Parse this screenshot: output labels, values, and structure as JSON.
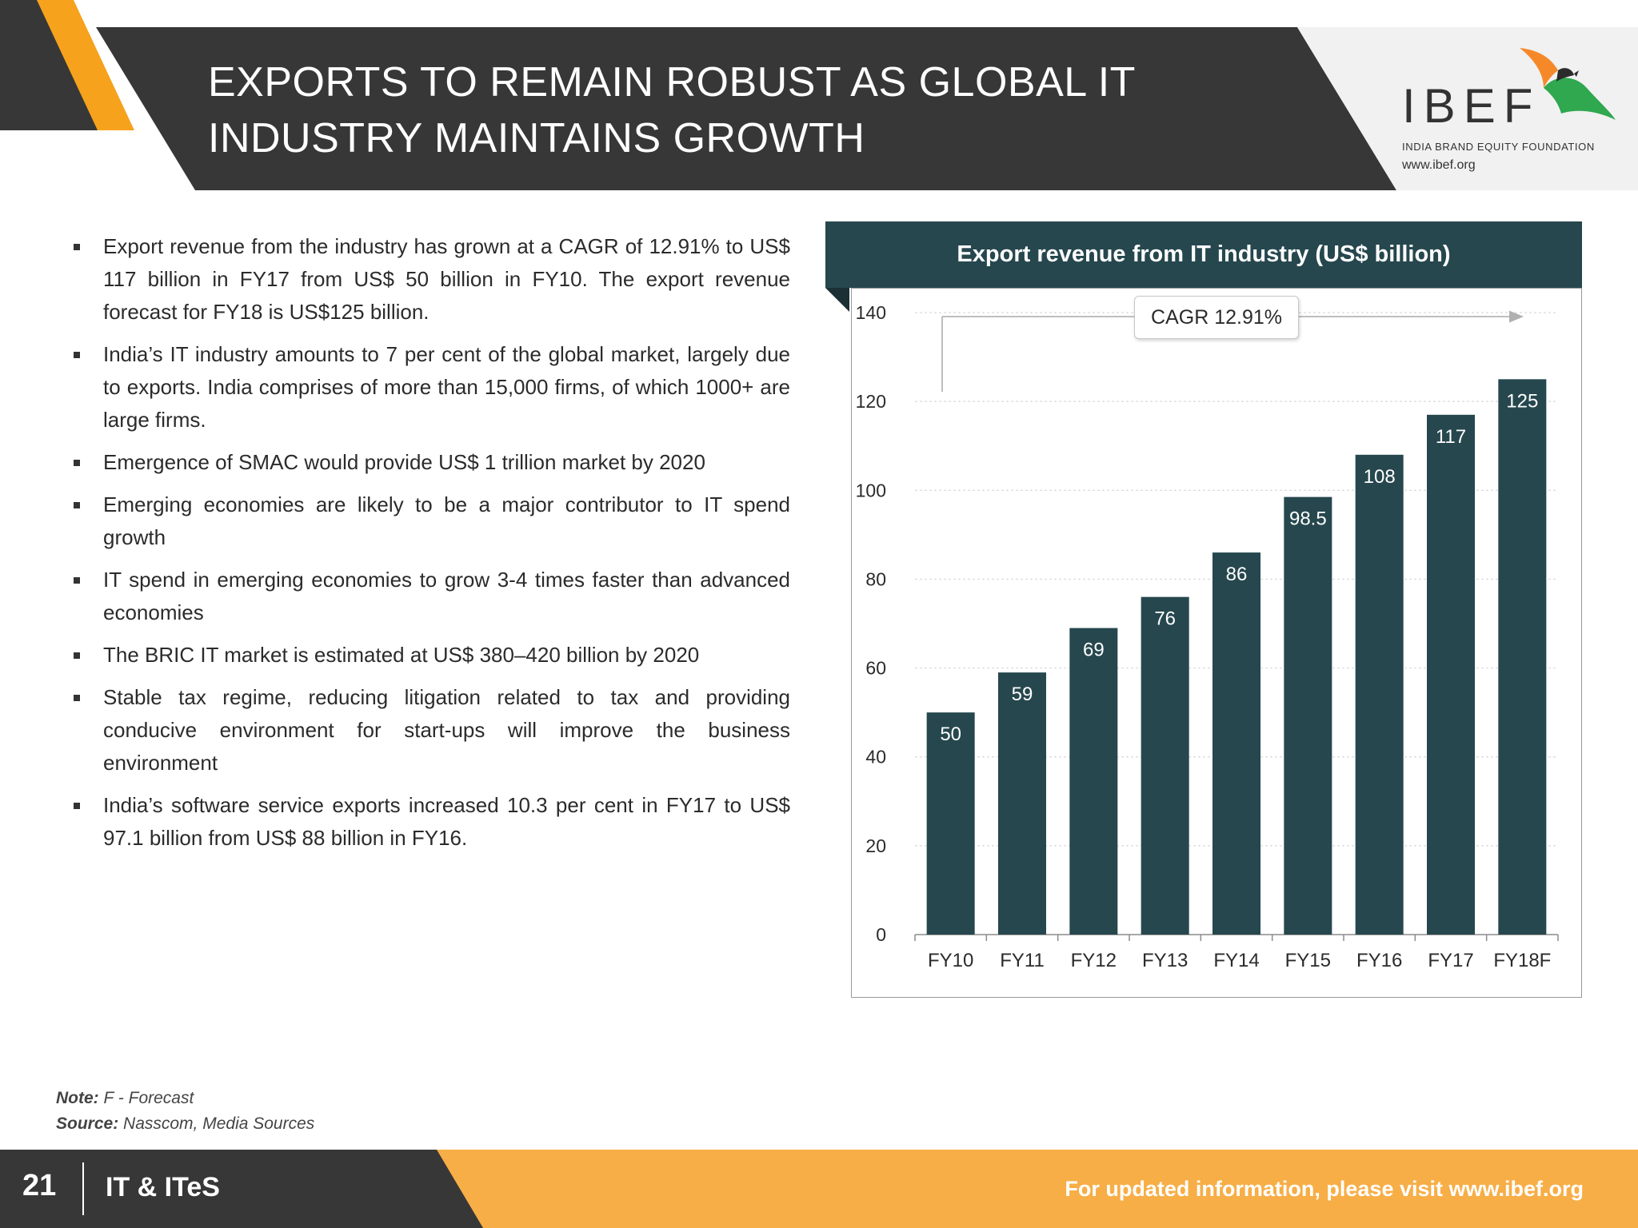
{
  "header": {
    "title_line1": "EXPORTS TO REMAIN ROBUST AS GLOBAL IT",
    "title_line2": "INDUSTRY MAINTAINS GROWTH",
    "logo": {
      "name": "IBEF",
      "tagline": "INDIA BRAND EQUITY FOUNDATION",
      "url": "www.ibef.org"
    }
  },
  "bullets": [
    "Export revenue from the industry has grown at a CAGR of 12.91% to US$ 117 billion in FY17 from US$ 50 billion in FY10. The export revenue forecast for FY18 is US$125 billion.",
    "India’s IT industry amounts to 7 per cent of the global market, largely due to exports. India comprises of more than 15,000 firms, of which 1000+ are large firms.",
    "Emergence of SMAC would provide US$ 1 trillion market by 2020",
    "Emerging economies are likely to be a major contributor to IT spend growth",
    "IT spend in emerging economies to grow 3-4 times faster than advanced economies",
    "The BRIC IT market is estimated at US$ 380–420 billion by 2020",
    "Stable tax regime, reducing litigation related to tax and providing conducive environment for start-ups will improve the business environment",
    "India’s software service exports increased 10.3 per cent in FY17 to US$ 97.1 billion from US$ 88 billion in FY16."
  ],
  "chart_data": {
    "type": "bar",
    "title": "Export revenue from IT industry (US$ billion)",
    "categories": [
      "FY10",
      "FY11",
      "FY12",
      "FY13",
      "FY14",
      "FY15",
      "FY16",
      "FY17",
      "FY18F"
    ],
    "values": [
      50,
      59,
      69,
      76,
      86,
      98.5,
      108,
      117,
      125
    ],
    "value_labels": [
      "50",
      "59",
      "69",
      "76",
      "86",
      "98.5",
      "108",
      "117",
      "125"
    ],
    "ylim": [
      0,
      140
    ],
    "yticks": [
      0,
      20,
      40,
      60,
      80,
      100,
      120,
      140
    ],
    "grid": true,
    "annotation": "CAGR 12.91%",
    "bar_color": "#26474e"
  },
  "notes": {
    "note_label": "Note:",
    "note_text": "F - Forecast",
    "source_label": "Source:",
    "source_text": "Nasscom, Media Sources"
  },
  "footer": {
    "page_number": "21",
    "section": "IT & ITeS",
    "link_text": "For updated information, please visit www.ibef.org"
  },
  "colors": {
    "header_dark": "#373737",
    "accent_orange": "#f6a21c",
    "footer_orange": "#f7ae46",
    "chart_teal": "#26474e"
  }
}
